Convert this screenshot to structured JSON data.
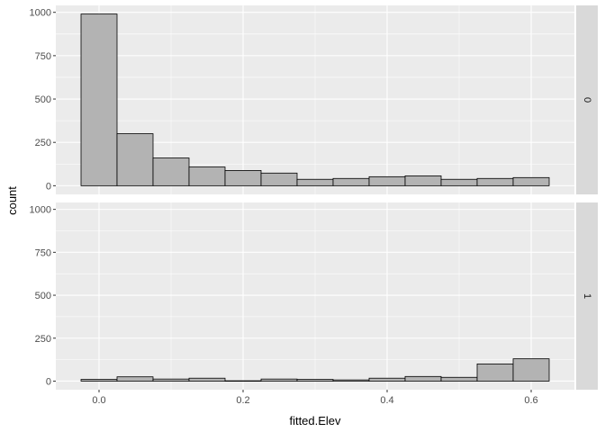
{
  "chart_data": {
    "type": "bar",
    "xlabel": "fitted.Elev",
    "ylabel": "count",
    "xlim": [
      -0.06,
      0.66
    ],
    "ylim": [
      -50,
      1040
    ],
    "x_ticks": [
      0.0,
      0.2,
      0.4,
      0.6
    ],
    "x_tick_labels": [
      "0.0",
      "0.2",
      "0.4",
      "0.6"
    ],
    "y_ticks": [
      0,
      250,
      500,
      750,
      1000
    ],
    "y_tick_labels": [
      "0",
      "250",
      "500",
      "750",
      "1000"
    ],
    "bin_width": 0.05,
    "bin_centers": [
      0.0,
      0.05,
      0.1,
      0.15,
      0.2,
      0.25,
      0.3,
      0.35,
      0.4,
      0.45,
      0.5,
      0.55,
      0.6
    ],
    "grid": true,
    "facets": [
      {
        "strip_label": "0",
        "values": [
          990,
          300,
          160,
          108,
          88,
          73,
          37,
          42,
          52,
          57,
          37,
          42,
          47
        ]
      },
      {
        "strip_label": "1",
        "values": [
          10,
          25,
          12,
          17,
          2,
          12,
          10,
          7,
          17,
          27,
          22,
          100,
          130
        ]
      }
    ],
    "colors": {
      "panel_background": "#ebebeb",
      "grid_major": "#ffffff",
      "bar_fill": "#b3b3b3",
      "bar_outline": "#000000",
      "strip_background": "#d9d9d9"
    }
  }
}
